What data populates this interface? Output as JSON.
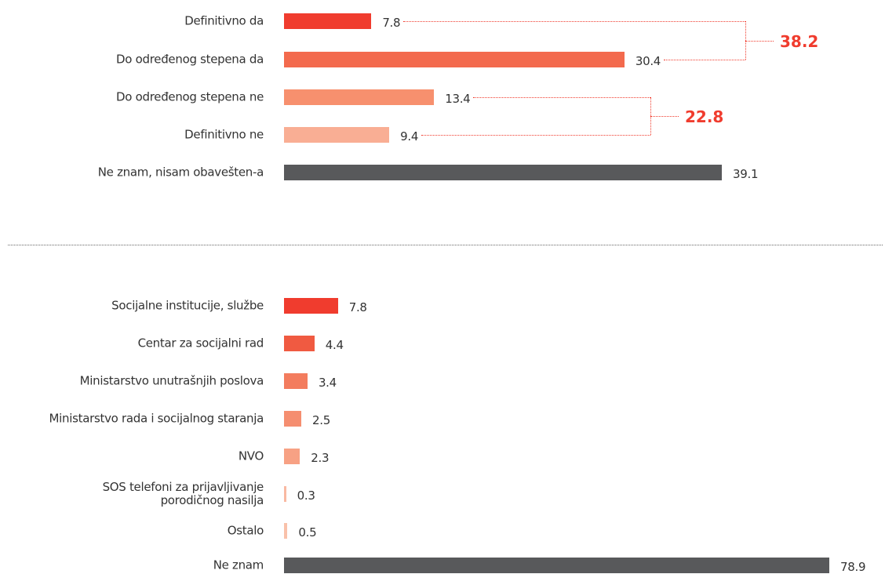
{
  "chart_data": [
    {
      "type": "bar",
      "categories": [
        "Definitivno da",
        "Do određenog stepena da",
        "Do određenog stepena ne",
        "Definitivno ne",
        "Ne znam, nisam obavešten-a"
      ],
      "values": [
        7.8,
        30.4,
        13.4,
        9.4,
        39.1
      ],
      "colors": [
        "#f03c2e",
        "#f36a4d",
        "#f7906e",
        "#f9ae94",
        "#58595b"
      ],
      "groups": [
        {
          "value": 38.2
        },
        {
          "value": 22.8
        }
      ]
    },
    {
      "type": "bar",
      "categories": [
        "Socijalne institucije, službe",
        "Centar za socijalni rad",
        "Ministarstvo unutrašnjih poslova",
        "Ministarstvo rada i socijalnog staranja",
        "NVO",
        "SOS telefoni za prijavljivanje\nporodičnog nasilja",
        "Ostalo",
        "Ne znam"
      ],
      "values": [
        7.8,
        4.4,
        3.4,
        2.5,
        2.3,
        0.3,
        0.5,
        78.9
      ],
      "colors": [
        "#f03c2e",
        "#f05a41",
        "#f37c5e",
        "#f58e70",
        "#f7a184",
        "#f9b9a2",
        "#f9c1aa",
        "#58595b"
      ]
    }
  ]
}
